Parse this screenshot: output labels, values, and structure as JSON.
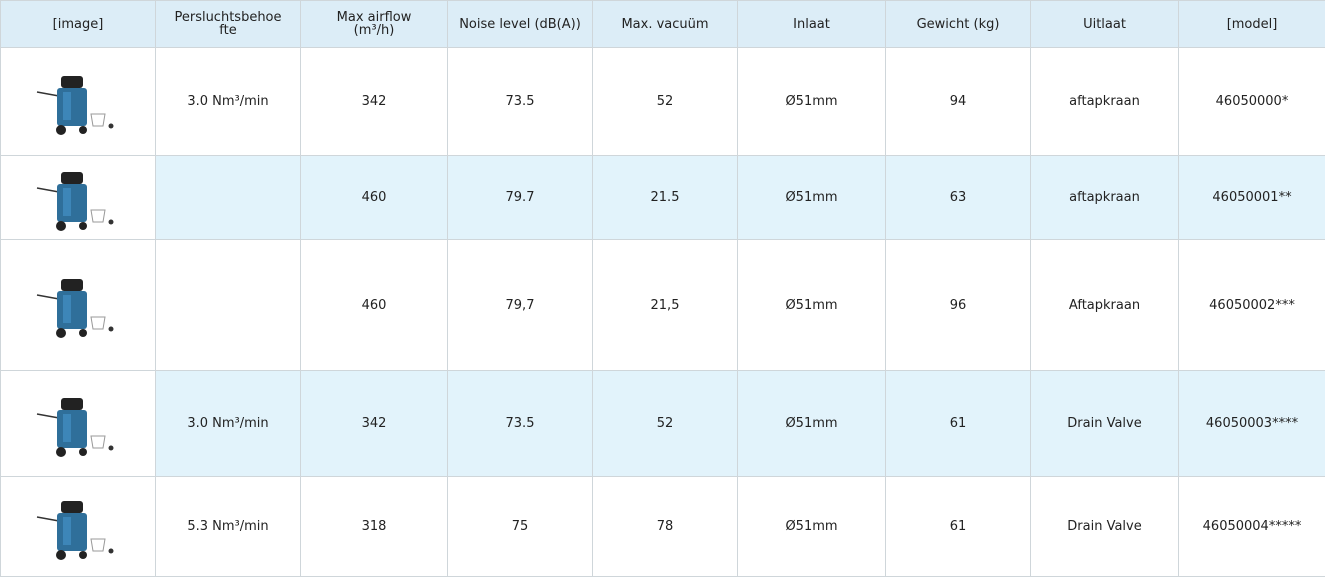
{
  "table": {
    "headers": [
      "[image]",
      "Persluchtsbehoefte",
      "Max airflow (m³/h)",
      "Noise level (dB(A))",
      "Max. vacuüm",
      "Inlaat",
      "Gewicht (kg)",
      "Uitlaat",
      "[model]"
    ],
    "rows": [
      [
        "3.0 Nm³/min",
        "342",
        "73.5",
        "52",
        "Ø51mm",
        "94",
        "aftapkraan",
        "46050000*"
      ],
      [
        null,
        "460",
        "79.7",
        "21.5",
        "Ø51mm",
        "63",
        "aftapkraan",
        "46050001**"
      ],
      [
        null,
        "460",
        "79,7",
        "21,5",
        "Ø51mm",
        "96",
        "Aftapkraan",
        "46050002***"
      ],
      [
        "3.0 Nm³/min",
        "342",
        "73.5",
        "52",
        "Ø51mm",
        "61",
        "Drain Valve",
        "46050003****"
      ],
      [
        "5.3 Nm³/min",
        "318",
        "75",
        "78",
        "Ø51mm",
        "61",
        "Drain Valve",
        "46050004*****"
      ]
    ]
  }
}
